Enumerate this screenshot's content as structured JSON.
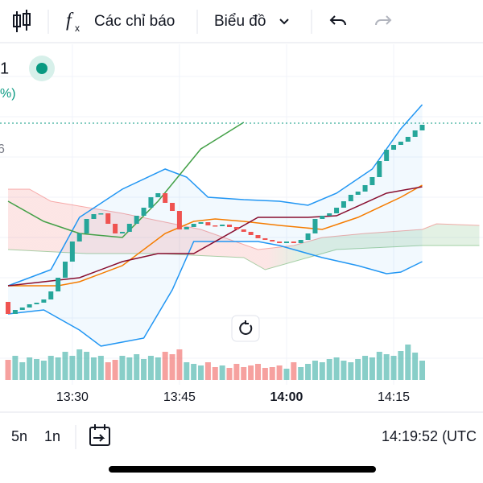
{
  "toolbar": {
    "indicators": "Các chỉ báo",
    "chart_menu": "Biểu đồ"
  },
  "side_labels": {
    "symbol_tail": "1",
    "change_tail": "%)",
    "price_tail": "6"
  },
  "chart_data": {
    "type": "candlestick",
    "xlim": [
      -1.13,
      66.51
    ],
    "ylim": [
      130,
      545
    ],
    "xticks": [
      {
        "value": 9,
        "label": "13:30"
      },
      {
        "value": 24,
        "label": "13:45"
      },
      {
        "value": 39,
        "label": "14:00"
      },
      {
        "value": 54,
        "label": "14:15"
      }
    ],
    "up_color": "#26a69a",
    "down_color": "#ef5350",
    "open": [
      225,
      210,
      215,
      218,
      222,
      224,
      228,
      238,
      255,
      275,
      300,
      310,
      328,
      334,
      335,
      322,
      310,
      312,
      322,
      332,
      342,
      355,
      360,
      348,
      338,
      315,
      318,
      322,
      324,
      320,
      319,
      321,
      318,
      315,
      312,
      308,
      304,
      302,
      300,
      298,
      300,
      298,
      302,
      310,
      328,
      332,
      335,
      342,
      350,
      358,
      362,
      370,
      380,
      400,
      414,
      420,
      424,
      430,
      438
    ],
    "close": [
      210,
      215,
      218,
      222,
      224,
      228,
      238,
      255,
      275,
      300,
      310,
      328,
      334,
      335,
      322,
      310,
      312,
      322,
      332,
      342,
      355,
      360,
      348,
      338,
      315,
      318,
      322,
      324,
      320,
      319,
      321,
      318,
      315,
      312,
      308,
      304,
      302,
      300,
      298,
      300,
      298,
      302,
      310,
      328,
      332,
      335,
      342,
      350,
      358,
      362,
      370,
      380,
      400,
      414,
      420,
      424,
      430,
      438,
      445
    ],
    "volume": [
      25,
      30,
      22,
      28,
      26,
      24,
      30,
      28,
      35,
      30,
      38,
      35,
      28,
      30,
      22,
      25,
      30,
      28,
      32,
      26,
      30,
      28,
      35,
      32,
      38,
      22,
      20,
      18,
      22,
      16,
      18,
      15,
      20,
      16,
      18,
      20,
      15,
      16,
      18,
      14,
      22,
      16,
      20,
      24,
      22,
      26,
      28,
      24,
      22,
      26,
      30,
      28,
      35,
      32,
      30,
      36,
      44,
      34,
      24
    ],
    "volume_lim": [
      0,
      100
    ],
    "last_price": 447,
    "bands": {
      "color": "#2196f3",
      "upper": {
        "x": [
          0,
          6,
          10,
          16,
          22,
          25,
          28,
          33,
          38,
          42,
          46,
          51,
          55,
          58
        ],
        "values": [
          245,
          265,
          330,
          365,
          390,
          380,
          355,
          352,
          350,
          345,
          360,
          390,
          440,
          470
        ]
      },
      "lower": {
        "x": [
          0,
          5,
          10,
          13,
          19,
          23,
          26,
          30,
          35,
          38,
          44,
          49,
          53,
          55,
          58
        ],
        "values": [
          210,
          215,
          190,
          170,
          180,
          240,
          300,
          300,
          300,
          295,
          280,
          270,
          260,
          262,
          275
        ]
      }
    },
    "cloud": {
      "span_a": {
        "x": [
          0,
          11,
          21,
          33,
          36,
          42,
          46,
          58,
          66
        ],
        "values": [
          290,
          285,
          285,
          280,
          265,
          280,
          290,
          295,
          295
        ]
      },
      "span_b": {
        "x": [
          0,
          3,
          6,
          16,
          27,
          35,
          40,
          44,
          50,
          58,
          60,
          66
        ],
        "values": [
          365,
          365,
          350,
          335,
          315,
          290,
          295,
          305,
          310,
          315,
          322,
          320
        ]
      }
    },
    "series": [
      {
        "color": "#f57c00",
        "x": [
          0,
          7,
          10,
          16,
          22,
          26,
          29,
          33,
          38,
          44,
          49,
          55,
          58
        ],
        "values": [
          245,
          245,
          250,
          270,
          310,
          325,
          328,
          325,
          320,
          315,
          330,
          355,
          370
        ]
      },
      {
        "color": "#880e2f",
        "x": [
          0,
          10,
          16,
          21,
          26,
          35,
          42,
          46,
          53,
          58
        ],
        "values": [
          245,
          255,
          275,
          285,
          285,
          330,
          330,
          332,
          360,
          368
        ]
      },
      {
        "color": "#43a047",
        "x": [
          0,
          5,
          10,
          16,
          21,
          27,
          33
        ],
        "values": [
          350,
          325,
          310,
          305,
          350,
          415,
          448
        ]
      }
    ]
  },
  "bottom_bar": {
    "interval_5": "5n",
    "interval_1": "1n",
    "clock": "14:19:52 (UTC"
  }
}
